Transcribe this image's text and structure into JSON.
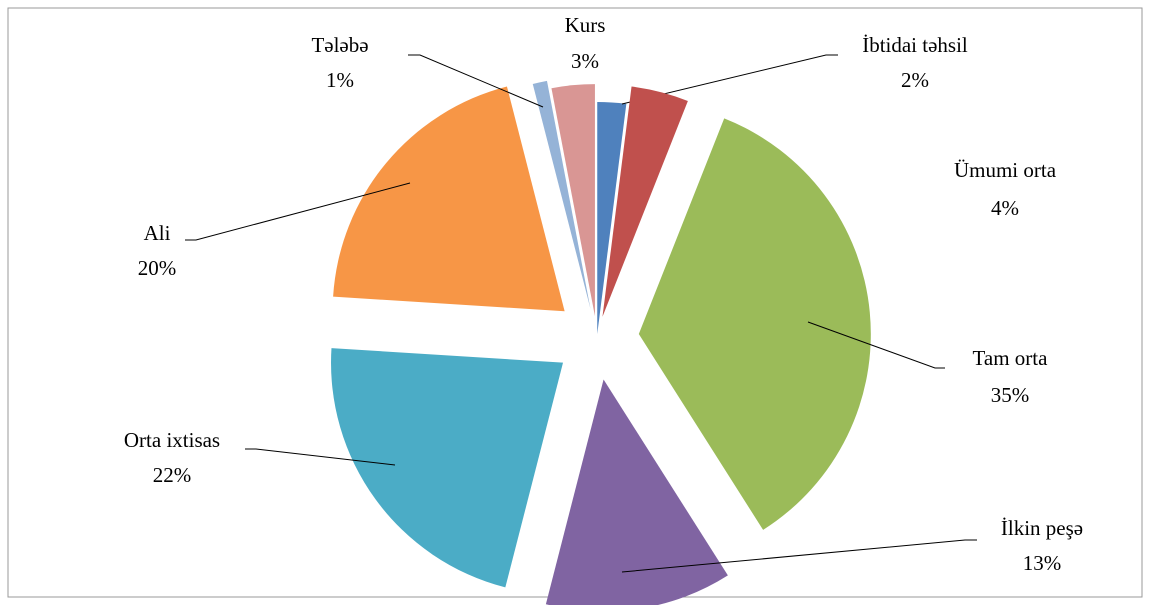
{
  "chart_data": {
    "type": "pie",
    "categories": [
      "İbtidai təhsil",
      "Ümumi orta",
      "Tam orta",
      "İlkin peşə",
      "Orta ixtisas",
      "Ali",
      "Tələbə",
      "Kurs"
    ],
    "values": [
      2,
      4,
      35,
      13,
      22,
      20,
      1,
      3
    ],
    "value_labels": [
      "2%",
      "4%",
      "35%",
      "13%",
      "22%",
      "20%",
      "1%",
      "3%"
    ],
    "colors": [
      "#4f81bd",
      "#c0504d",
      "#9bbb59",
      "#8064a2",
      "#4bacc6",
      "#f79646",
      "#95b3d7",
      "#d99694"
    ]
  }
}
